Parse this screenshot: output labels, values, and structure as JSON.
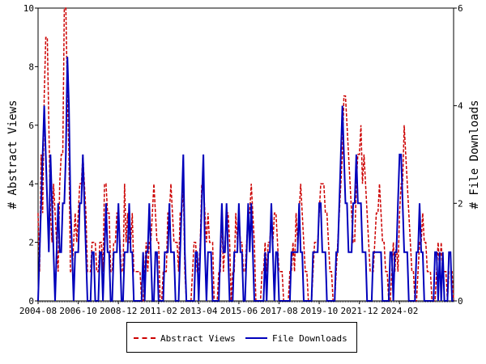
{
  "chart_data": {
    "type": "line",
    "title": "",
    "xlabel": "",
    "ylabel": "# Abstract Views",
    "y2label": "# File Downloads",
    "ylim": [
      0,
      10
    ],
    "y2lim": [
      0,
      6
    ],
    "yticks": [
      "0",
      "2",
      "4",
      "6",
      "8",
      "10"
    ],
    "y2ticks": [
      "0",
      "2",
      "4",
      "6"
    ],
    "xticks": [
      "2004-08",
      "2006-10",
      "2008-12",
      "2011-02",
      "2013-04",
      "2015-06",
      "2017-08",
      "2019-10",
      "2021-12",
      "2024-02"
    ],
    "grid": false,
    "legend_position": "bottom",
    "x_start": "2004-08",
    "x_interval": "monthly",
    "colors": {
      "views": "#cc0000",
      "downloads": "#0000bb"
    },
    "series": [
      {
        "name": "Abstract Views",
        "axis": "left",
        "style": "dashed",
        "values": [
          3,
          1,
          5,
          3,
          7,
          9,
          9,
          6,
          3,
          2,
          4,
          3,
          2,
          1,
          4,
          5,
          5,
          10,
          10,
          7,
          5,
          1,
          1,
          2,
          3,
          2,
          3,
          4,
          4,
          5,
          4,
          3,
          1,
          1,
          1,
          2,
          2,
          2,
          1,
          1,
          2,
          2,
          1,
          4,
          4,
          3,
          3,
          1,
          1,
          2,
          2,
          3,
          3,
          2,
          1,
          1,
          4,
          2,
          3,
          2,
          2,
          3,
          1,
          1,
          1,
          1,
          1,
          0,
          0,
          1,
          2,
          1,
          2,
          2,
          3,
          4,
          3,
          2,
          2,
          0,
          0,
          1,
          1,
          1,
          3,
          3,
          4,
          3,
          2,
          2,
          2,
          1,
          3,
          3,
          4,
          1,
          0,
          0,
          0,
          0,
          1,
          2,
          2,
          1,
          1,
          2,
          4,
          4,
          3,
          2,
          3,
          2,
          2,
          2,
          0,
          0,
          0,
          1,
          1,
          3,
          1,
          2,
          3,
          3,
          2,
          0,
          1,
          1,
          3,
          2,
          3,
          2,
          2,
          1,
          1,
          2,
          3,
          3,
          4,
          3,
          2,
          0,
          0,
          0,
          0,
          1,
          1,
          2,
          1,
          2,
          2,
          3,
          2,
          3,
          3,
          2,
          1,
          1,
          1,
          0,
          0,
          0,
          0,
          1,
          1,
          2,
          1,
          3,
          2,
          3,
          4,
          3,
          2,
          1,
          1,
          0,
          0,
          0,
          1,
          2,
          2,
          2,
          3,
          4,
          4,
          4,
          3,
          3,
          2,
          1,
          1,
          0,
          0,
          1,
          2,
          3,
          4,
          5,
          7,
          7,
          6,
          5,
          4,
          3,
          2,
          2,
          4,
          5,
          5,
          6,
          4,
          5,
          4,
          3,
          2,
          1,
          1,
          1,
          2,
          3,
          3,
          4,
          3,
          2,
          2,
          1,
          1,
          0,
          0,
          1,
          2,
          1,
          2,
          1,
          3,
          4,
          4,
          6,
          5,
          4,
          3,
          2,
          1,
          1,
          0,
          0,
          1,
          2,
          2,
          3,
          2,
          2,
          1,
          1,
          1,
          0,
          0,
          0,
          1,
          2,
          1,
          2,
          1,
          1,
          1,
          0,
          1,
          1,
          1,
          0
        ]
      },
      {
        "name": "File Downloads",
        "axis": "right",
        "style": "solid",
        "values": [
          0,
          1,
          2,
          3,
          4,
          3,
          2,
          1,
          3,
          2,
          1,
          0,
          1,
          2,
          1,
          1,
          2,
          2,
          3,
          5,
          4,
          2,
          1,
          0,
          1,
          1,
          1,
          2,
          2,
          3,
          2,
          1,
          0,
          0,
          0,
          1,
          1,
          0,
          0,
          0,
          1,
          1,
          0,
          1,
          2,
          1,
          1,
          0,
          0,
          1,
          1,
          1,
          2,
          1,
          0,
          0,
          1,
          1,
          1,
          2,
          1,
          1,
          0,
          0,
          0,
          0,
          0,
          0,
          1,
          0,
          1,
          1,
          2,
          1,
          0,
          0,
          1,
          1,
          0,
          0,
          0,
          0,
          1,
          1,
          1,
          2,
          1,
          1,
          1,
          0,
          0,
          0,
          1,
          2,
          3,
          1,
          0,
          0,
          0,
          0,
          0,
          0,
          1,
          1,
          0,
          1,
          2,
          3,
          1,
          0,
          1,
          1,
          1,
          0,
          0,
          0,
          0,
          0,
          1,
          2,
          1,
          1,
          2,
          1,
          0,
          0,
          0,
          1,
          1,
          1,
          2,
          1,
          1,
          0,
          0,
          1,
          2,
          1,
          2,
          1,
          0,
          0,
          0,
          0,
          0,
          0,
          0,
          1,
          0,
          1,
          1,
          2,
          1,
          0,
          1,
          1,
          0,
          0,
          0,
          0,
          0,
          0,
          0,
          0,
          1,
          1,
          1,
          1,
          1,
          2,
          1,
          1,
          0,
          0,
          0,
          0,
          0,
          0,
          1,
          1,
          1,
          1,
          2,
          2,
          1,
          1,
          1,
          0,
          0,
          0,
          0,
          0,
          0,
          1,
          1,
          2,
          3,
          4,
          3,
          2,
          2,
          1,
          1,
          1,
          2,
          2,
          3,
          2,
          2,
          2,
          1,
          1,
          1,
          0,
          0,
          0,
          0,
          1,
          1,
          1,
          1,
          1,
          1,
          0,
          0,
          0,
          0,
          0,
          1,
          1,
          0,
          1,
          1,
          2,
          3,
          3,
          2,
          1,
          1,
          1,
          0,
          0,
          0,
          0,
          0,
          1,
          1,
          2,
          1,
          1,
          0,
          0,
          0,
          0,
          0,
          0,
          0,
          1,
          1,
          0,
          1,
          0,
          1,
          0,
          0,
          0,
          1,
          1,
          0,
          0
        ]
      }
    ]
  }
}
